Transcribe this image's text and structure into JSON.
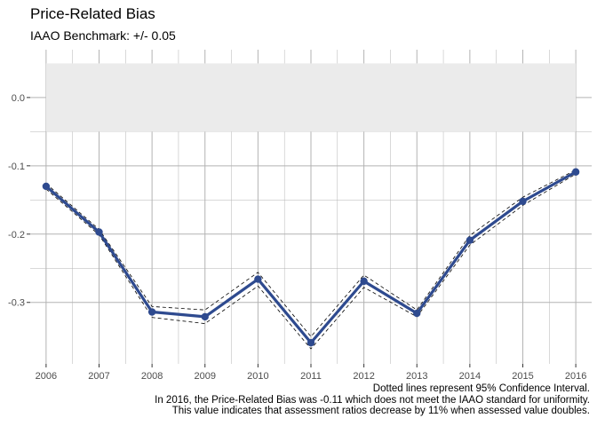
{
  "chart_data": {
    "type": "line",
    "title": "Price-Related Bias",
    "subtitle": "IAAO Benchmark: +/- 0.05",
    "xlabel": "",
    "ylabel": "",
    "x": [
      2006,
      2007,
      2008,
      2009,
      2010,
      2011,
      2012,
      2013,
      2014,
      2015,
      2016
    ],
    "x_tick_labels": [
      "2006",
      "2007",
      "2008",
      "2009",
      "2010",
      "2011",
      "2012",
      "2013",
      "2014",
      "2015",
      "2016"
    ],
    "y_ticks": [
      0.0,
      -0.1,
      -0.2,
      -0.3
    ],
    "y_tick_labels": [
      "0.0",
      "-0.1",
      "-0.2",
      "-0.3"
    ],
    "ylim": [
      -0.39,
      0.07
    ],
    "xlim": [
      2005.7,
      2016.3
    ],
    "benchmark_band": [
      -0.05,
      0.05
    ],
    "series": [
      {
        "values": [
          -0.13,
          -0.197,
          -0.314,
          -0.321,
          -0.266,
          -0.359,
          -0.269,
          -0.316,
          -0.209,
          -0.152,
          -0.109
        ],
        "ci_lower": [
          -0.134,
          -0.201,
          -0.322,
          -0.331,
          -0.276,
          -0.368,
          -0.278,
          -0.321,
          -0.216,
          -0.158,
          -0.112
        ],
        "ci_upper": [
          -0.126,
          -0.193,
          -0.306,
          -0.311,
          -0.256,
          -0.35,
          -0.26,
          -0.311,
          -0.202,
          -0.146,
          -0.106
        ]
      }
    ],
    "grid": true,
    "legend": "none",
    "colors": {
      "line": "#2e4a8f",
      "band": "#ebebeb",
      "grid": "#b3b3b3",
      "ci": "#000000"
    }
  },
  "caption_lines": [
    "Dotted lines represent 95% Confidence Interval.",
    "In 2016, the Price-Related Bias was -0.11 which does not meet the IAAO standard for uniformity.",
    "This value indicates that assessment ratios decrease by 11% when assessed value doubles."
  ]
}
